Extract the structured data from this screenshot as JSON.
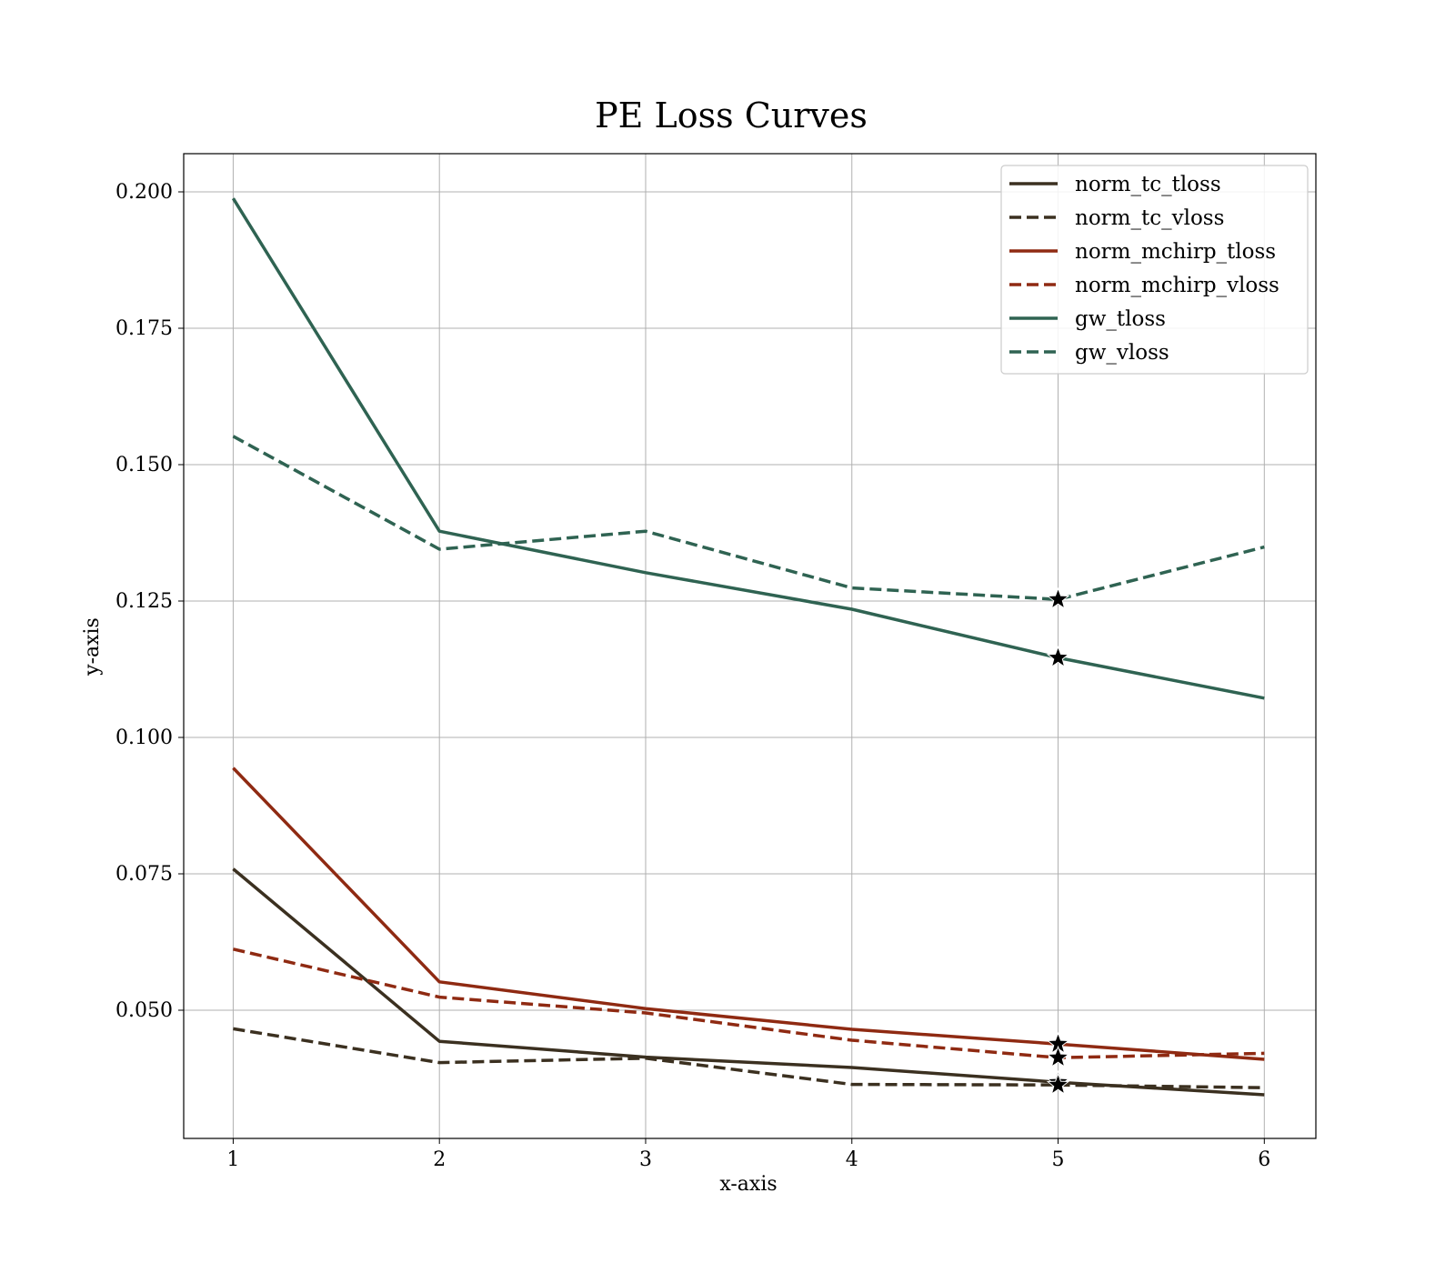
{
  "chart_data": {
    "type": "line",
    "title": "PE Loss Curves",
    "xlabel": "x-axis",
    "ylabel": "y-axis",
    "xlim": [
      0.76,
      6.25
    ],
    "ylim": [
      0.0265,
      0.207
    ],
    "xticks": [
      1,
      2,
      3,
      4,
      5,
      6
    ],
    "yticks": [
      0.05,
      0.075,
      0.1,
      0.125,
      0.15,
      0.175,
      0.2
    ],
    "ytick_labels": [
      "0.050",
      "0.075",
      "0.100",
      "0.125",
      "0.150",
      "0.175",
      "0.200"
    ],
    "grid": true,
    "legend_position": "top-right",
    "x": [
      1,
      2,
      3,
      4,
      5,
      6
    ],
    "series": [
      {
        "name": "norm_tc_tloss",
        "values": [
          0.0759,
          0.0443,
          0.0414,
          0.0395,
          0.0368,
          0.0345
        ],
        "color": "#3b3020",
        "dash": "solid",
        "marker_x": 5
      },
      {
        "name": "norm_tc_vloss",
        "values": [
          0.0466,
          0.0404,
          0.0412,
          0.0364,
          0.0363,
          0.0358
        ],
        "color": "#3b3020",
        "dash": "dashed",
        "marker_x": 5
      },
      {
        "name": "norm_mchirp_tloss",
        "values": [
          0.0944,
          0.0552,
          0.0503,
          0.0465,
          0.0438,
          0.041
        ],
        "color": "#8f2a12",
        "dash": "solid",
        "marker_x": 5
      },
      {
        "name": "norm_mchirp_vloss",
        "values": [
          0.0612,
          0.0524,
          0.0495,
          0.0445,
          0.0413,
          0.0421
        ],
        "color": "#8f2a12",
        "dash": "dashed",
        "marker_x": 5
      },
      {
        "name": "gw_tloss",
        "values": [
          0.1988,
          0.1378,
          0.1302,
          0.1235,
          0.1146,
          0.1072
        ],
        "color": "#2f6352",
        "dash": "solid",
        "marker_x": 5
      },
      {
        "name": "gw_vloss",
        "values": [
          0.1552,
          0.1345,
          0.1378,
          0.1274,
          0.1253,
          0.1349
        ],
        "color": "#2f6352",
        "dash": "dashed",
        "marker_x": 5
      }
    ]
  }
}
